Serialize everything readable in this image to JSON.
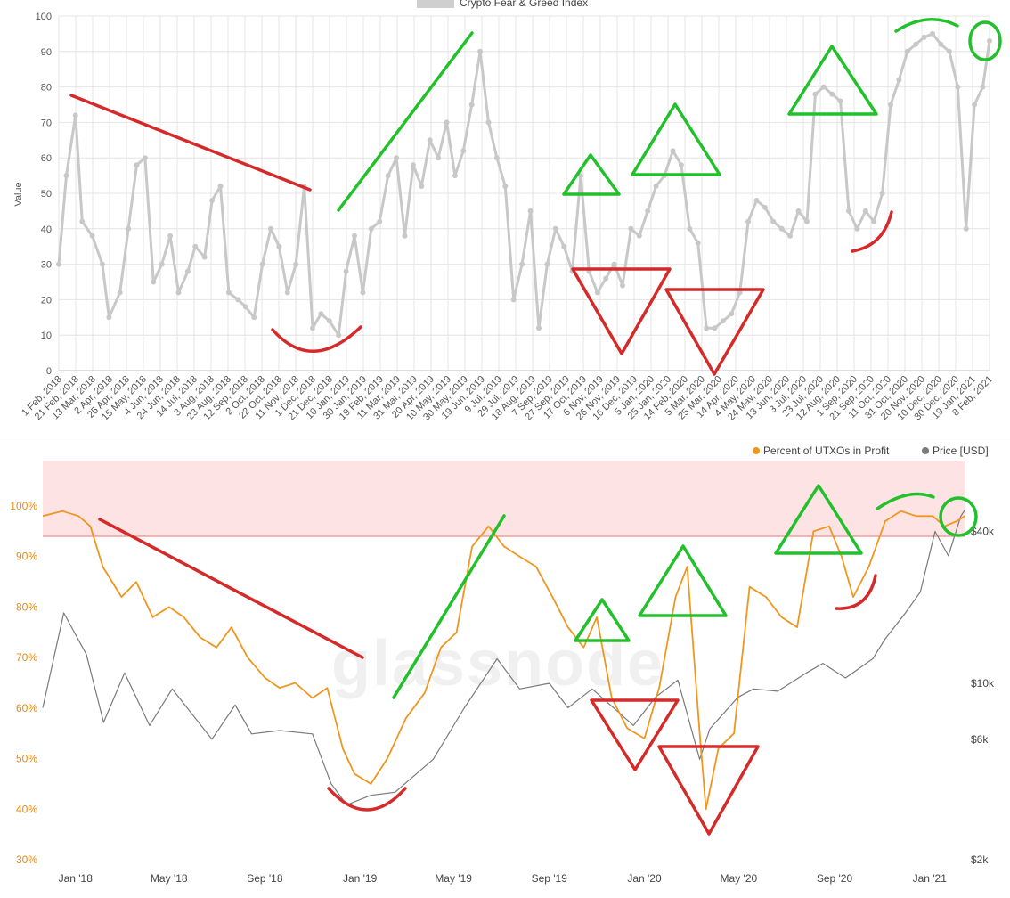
{
  "colors": {
    "fear_greed_line": "#c8c8c8",
    "utxo_line": "#f0961e",
    "price_line": "#7a7a7a",
    "annotation_green": "#22c02a",
    "annotation_red": "#d42a2a",
    "band_fill": "#fde3e3",
    "band_line": "#e87474",
    "grid": "#e4e4e4"
  },
  "top_chart": {
    "legend_label": "Crypto Fear & Greed Index",
    "y_axis_title": "Value",
    "y_ticks": [
      "0",
      "10",
      "20",
      "30",
      "40",
      "50",
      "60",
      "70",
      "80",
      "90",
      "100"
    ],
    "x_ticks": [
      "1 Feb, 2018",
      "21 Feb, 2018",
      "13 Mar, 2018",
      "2 Apr, 2018",
      "25 Apr, 2018",
      "15 May, 2018",
      "4 Jun, 2018",
      "24 Jun, 2018",
      "14 Jul, 2018",
      "3 Aug, 2018",
      "23 Aug, 2018",
      "12 Sep, 2018",
      "2 Oct, 2018",
      "22 Oct, 2018",
      "11 Nov, 2018",
      "1 Dec, 2018",
      "21 Dec, 2018",
      "10 Jan, 2019",
      "30 Jan, 2019",
      "19 Feb, 2019",
      "11 Mar, 2019",
      "31 Mar, 2019",
      "20 Apr, 2019",
      "10 May, 2019",
      "30 May, 2019",
      "19 Jun, 2019",
      "9 Jul, 2019",
      "29 Jul, 2019",
      "18 Aug, 2019",
      "7 Sep, 2019",
      "27 Sep, 2019",
      "17 Oct, 2019",
      "6 Nov, 2019",
      "26 Nov, 2019",
      "16 Dec, 2019",
      "5 Jan, 2020",
      "25 Jan, 2020",
      "14 Feb, 2020",
      "5 Mar, 2020",
      "25 Mar, 2020",
      "14 Apr, 2020",
      "4 May, 2020",
      "24 May, 2020",
      "13 Jun, 2020",
      "3 Jul, 2020",
      "23 Jul, 2020",
      "12 Aug, 2020",
      "1 Sep, 2020",
      "21 Sep, 2020",
      "11 Oct, 2020",
      "31 Oct, 2020",
      "20 Nov, 2020",
      "10 Dec, 2020",
      "30 Dec, 2020",
      "19 Jan, 2021",
      "8 Feb, 2021"
    ]
  },
  "bottom_chart": {
    "legend": [
      {
        "label": "Percent of UTXOs in Profit",
        "color": "#f0961e"
      },
      {
        "label": "Price [USD]",
        "color": "#7a7a7a"
      }
    ],
    "y_left_ticks": [
      "30%",
      "40%",
      "50%",
      "60%",
      "70%",
      "80%",
      "90%",
      "100%"
    ],
    "y_right_ticks": [
      "$2k",
      "$6k",
      "$10k",
      "$40k"
    ],
    "x_ticks": [
      "Jan '18",
      "May '18",
      "Sep '18",
      "Jan '19",
      "May '19",
      "Sep '19",
      "Jan '20",
      "May '20",
      "Sep '20",
      "Jan '21"
    ],
    "watermark": "glassnode"
  },
  "chart_data": [
    {
      "type": "line",
      "title": "",
      "legend": "Crypto Fear & Greed Index",
      "xlabel": "",
      "ylabel": "Value",
      "ylim": [
        0,
        100
      ],
      "grid": true,
      "legend_placement": "top-center",
      "series": [
        {
          "name": "Crypto Fear & Greed Index",
          "x": [
            "2018-02-01",
            "2018-02-10",
            "2018-02-21",
            "2018-03-01",
            "2018-03-13",
            "2018-03-25",
            "2018-04-02",
            "2018-04-15",
            "2018-04-25",
            "2018-05-05",
            "2018-05-15",
            "2018-05-25",
            "2018-06-04",
            "2018-06-14",
            "2018-06-24",
            "2018-07-05",
            "2018-07-14",
            "2018-07-25",
            "2018-08-03",
            "2018-08-13",
            "2018-08-23",
            "2018-09-03",
            "2018-09-12",
            "2018-09-22",
            "2018-10-02",
            "2018-10-12",
            "2018-10-22",
            "2018-11-01",
            "2018-11-11",
            "2018-11-21",
            "2018-12-01",
            "2018-12-11",
            "2018-12-21",
            "2019-01-01",
            "2019-01-10",
            "2019-01-20",
            "2019-01-30",
            "2019-02-09",
            "2019-02-19",
            "2019-03-01",
            "2019-03-11",
            "2019-03-21",
            "2019-03-31",
            "2019-04-10",
            "2019-04-20",
            "2019-04-30",
            "2019-05-10",
            "2019-05-20",
            "2019-05-30",
            "2019-06-09",
            "2019-06-19",
            "2019-06-29",
            "2019-07-09",
            "2019-07-19",
            "2019-07-29",
            "2019-08-08",
            "2019-08-18",
            "2019-08-28",
            "2019-09-07",
            "2019-09-17",
            "2019-09-27",
            "2019-10-07",
            "2019-10-17",
            "2019-10-27",
            "2019-11-06",
            "2019-11-16",
            "2019-11-26",
            "2019-12-06",
            "2019-12-16",
            "2019-12-26",
            "2020-01-05",
            "2020-01-15",
            "2020-01-25",
            "2020-02-04",
            "2020-02-14",
            "2020-02-24",
            "2020-03-05",
            "2020-03-15",
            "2020-03-25",
            "2020-04-04",
            "2020-04-14",
            "2020-04-24",
            "2020-05-04",
            "2020-05-14",
            "2020-05-24",
            "2020-06-03",
            "2020-06-13",
            "2020-06-23",
            "2020-07-03",
            "2020-07-13",
            "2020-07-23",
            "2020-08-02",
            "2020-08-12",
            "2020-08-22",
            "2020-09-01",
            "2020-09-11",
            "2020-09-21",
            "2020-10-01",
            "2020-10-11",
            "2020-10-21",
            "2020-10-31",
            "2020-11-10",
            "2020-11-20",
            "2020-11-30",
            "2020-12-10",
            "2020-12-20",
            "2020-12-30",
            "2021-01-09",
            "2021-01-19",
            "2021-01-29",
            "2021-02-08",
            "2021-02-16"
          ],
          "values": [
            30,
            55,
            72,
            42,
            38,
            30,
            15,
            22,
            40,
            58,
            60,
            25,
            30,
            38,
            22,
            28,
            35,
            32,
            48,
            52,
            22,
            20,
            18,
            15,
            30,
            40,
            35,
            22,
            30,
            52,
            12,
            16,
            14,
            10,
            28,
            38,
            22,
            40,
            42,
            55,
            60,
            38,
            58,
            52,
            65,
            60,
            70,
            55,
            62,
            75,
            90,
            70,
            60,
            52,
            20,
            30,
            45,
            12,
            30,
            40,
            35,
            28,
            55,
            28,
            22,
            26,
            30,
            24,
            40,
            38,
            45,
            52,
            55,
            62,
            58,
            40,
            36,
            12,
            12,
            14,
            16,
            22,
            42,
            48,
            46,
            42,
            40,
            38,
            45,
            42,
            78,
            80,
            78,
            76,
            45,
            40,
            45,
            42,
            50,
            75,
            82,
            90,
            92,
            94,
            95,
            92,
            90,
            80,
            40,
            75,
            80,
            93
          ]
        }
      ]
    },
    {
      "type": "line",
      "title": "",
      "xlabel": "",
      "ylabel": "",
      "ylim": [
        30,
        100
      ],
      "grid": false,
      "legend_placement": "top-right",
      "series": [
        {
          "name": "Percent of UTXOs in Profit",
          "axis": "left",
          "x": [
            "2017-11-20",
            "2017-12-15",
            "2018-01-05",
            "2018-01-20",
            "2018-02-05",
            "2018-03-01",
            "2018-03-20",
            "2018-04-10",
            "2018-05-01",
            "2018-05-20",
            "2018-06-10",
            "2018-07-01",
            "2018-07-20",
            "2018-08-10",
            "2018-09-01",
            "2018-09-20",
            "2018-10-10",
            "2018-11-01",
            "2018-11-20",
            "2018-12-10",
            "2018-12-25",
            "2019-01-15",
            "2019-02-05",
            "2019-03-01",
            "2019-03-25",
            "2019-04-15",
            "2019-05-05",
            "2019-05-25",
            "2019-06-15",
            "2019-07-05",
            "2019-07-25",
            "2019-08-15",
            "2019-09-05",
            "2019-09-25",
            "2019-10-15",
            "2019-11-01",
            "2019-11-20",
            "2019-12-10",
            "2020-01-01",
            "2020-01-20",
            "2020-02-10",
            "2020-02-25",
            "2020-03-12",
            "2020-03-20",
            "2020-04-05",
            "2020-04-25",
            "2020-05-15",
            "2020-06-05",
            "2020-06-25",
            "2020-07-15",
            "2020-08-05",
            "2020-08-25",
            "2020-09-10",
            "2020-09-25",
            "2020-10-15",
            "2020-11-05",
            "2020-11-25",
            "2020-12-15",
            "2021-01-05",
            "2021-01-20",
            "2021-02-05",
            "2021-02-15"
          ],
          "values": [
            98,
            99,
            98,
            96,
            88,
            82,
            85,
            78,
            80,
            78,
            74,
            72,
            76,
            70,
            66,
            64,
            65,
            62,
            64,
            52,
            47,
            45,
            50,
            58,
            63,
            72,
            75,
            92,
            96,
            92,
            90,
            88,
            82,
            76,
            72,
            78,
            62,
            56,
            54,
            64,
            82,
            88,
            55,
            40,
            52,
            55,
            84,
            82,
            78,
            76,
            95,
            96,
            90,
            82,
            88,
            97,
            99,
            98,
            98,
            96,
            97,
            98
          ]
        },
        {
          "name": "Price [USD]",
          "axis": "right",
          "x": [
            "2017-11-20",
            "2017-12-17",
            "2018-01-15",
            "2018-02-06",
            "2018-03-05",
            "2018-04-06",
            "2018-05-05",
            "2018-06-25",
            "2018-07-25",
            "2018-08-15",
            "2018-09-20",
            "2018-11-01",
            "2018-11-25",
            "2018-12-15",
            "2019-01-15",
            "2019-02-15",
            "2019-04-05",
            "2019-05-15",
            "2019-06-26",
            "2019-07-25",
            "2019-09-01",
            "2019-09-25",
            "2019-10-26",
            "2019-12-18",
            "2020-01-15",
            "2020-02-13",
            "2020-03-12",
            "2020-03-25",
            "2020-04-30",
            "2020-05-20",
            "2020-06-20",
            "2020-07-27",
            "2020-08-17",
            "2020-09-15",
            "2020-10-20",
            "2020-11-05",
            "2020-12-01",
            "2020-12-20",
            "2021-01-08",
            "2021-01-25",
            "2021-02-10",
            "2021-02-16"
          ],
          "values": [
            8000,
            19000,
            13000,
            7000,
            11000,
            6800,
            9500,
            6000,
            8200,
            6300,
            6500,
            6300,
            4000,
            3300,
            3600,
            3700,
            5000,
            8000,
            12500,
            9500,
            10000,
            8000,
            9500,
            6800,
            8800,
            10300,
            5000,
            6600,
            8800,
            9500,
            9300,
            11000,
            12000,
            10500,
            12500,
            15000,
            19000,
            23000,
            40000,
            32000,
            46000,
            49000
          ]
        }
      ]
    }
  ]
}
